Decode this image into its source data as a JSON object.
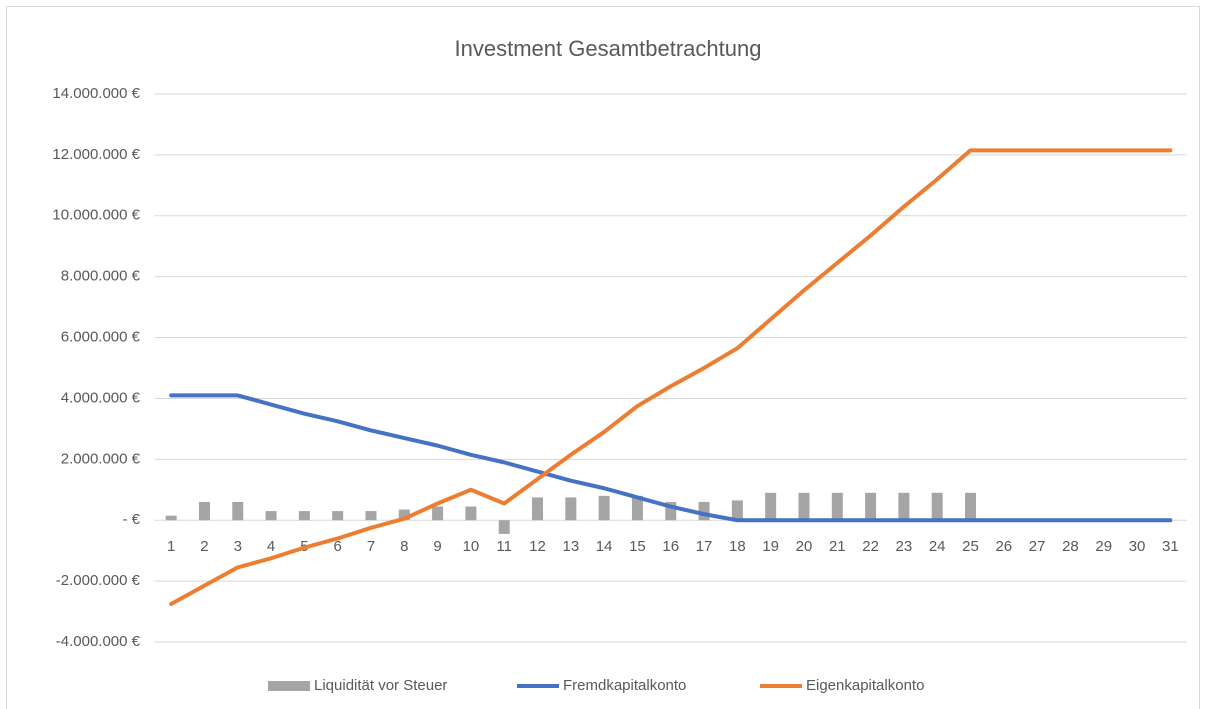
{
  "chart_data": {
    "type": "bar_line",
    "title": "Investment Gesamtbetrachtung",
    "categories": [
      "1",
      "2",
      "3",
      "4",
      "5",
      "6",
      "7",
      "8",
      "9",
      "10",
      "11",
      "12",
      "13",
      "14",
      "15",
      "16",
      "17",
      "18",
      "19",
      "20",
      "21",
      "22",
      "23",
      "24",
      "25",
      "26",
      "27",
      "28",
      "29",
      "30",
      "31"
    ],
    "series": [
      {
        "name": "Liquidität vor Steuer",
        "type": "bar",
        "color": "#a5a5a5",
        "values": [
          150000,
          600000,
          600000,
          300000,
          300000,
          300000,
          300000,
          350000,
          450000,
          450000,
          -450000,
          750000,
          750000,
          800000,
          800000,
          600000,
          600000,
          650000,
          900000,
          900000,
          900000,
          900000,
          900000,
          900000,
          900000,
          0,
          0,
          0,
          0,
          0,
          0
        ]
      },
      {
        "name": "Fremdkapitalkonto",
        "type": "line",
        "color": "#4472c4",
        "values": [
          4100000,
          4100000,
          4100000,
          3800000,
          3500000,
          3250000,
          2950000,
          2700000,
          2450000,
          2150000,
          1900000,
          1600000,
          1300000,
          1050000,
          750000,
          450000,
          200000,
          0,
          0,
          0,
          0,
          0,
          0,
          0,
          0,
          0,
          0,
          0,
          0,
          0,
          0
        ]
      },
      {
        "name": "Eigenkapitalkonto",
        "type": "line",
        "color": "#ed7d31",
        "values": [
          -2750000,
          -2150000,
          -1550000,
          -1250000,
          -900000,
          -600000,
          -250000,
          50000,
          550000,
          1000000,
          550000,
          1350000,
          2150000,
          2900000,
          3750000,
          4400000,
          5000000,
          5650000,
          6600000,
          7550000,
          8450000,
          9350000,
          10300000,
          11200000,
          12150000,
          12150000,
          12150000,
          12150000,
          12150000,
          12150000,
          12150000
        ]
      }
    ],
    "ylim": [
      -4000000,
      14000000
    ],
    "yticks": [
      {
        "value": -4000000,
        "label": "-4.000.000 €"
      },
      {
        "value": -2000000,
        "label": "-2.000.000 €"
      },
      {
        "value": 0,
        "label": "-   €"
      },
      {
        "value": 2000000,
        "label": "2.000.000 €"
      },
      {
        "value": 4000000,
        "label": "4.000.000 €"
      },
      {
        "value": 6000000,
        "label": "6.000.000 €"
      },
      {
        "value": 8000000,
        "label": "8.000.000 €"
      },
      {
        "value": 10000000,
        "label": "10.000.000 €"
      },
      {
        "value": 12000000,
        "label": "12.000.000 €"
      },
      {
        "value": 14000000,
        "label": "14.000.000 €"
      }
    ],
    "grid": true,
    "legend": "bottom"
  }
}
